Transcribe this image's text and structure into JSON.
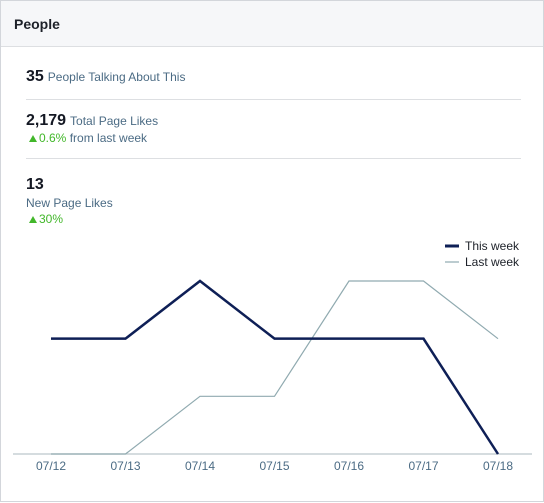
{
  "header": {
    "title": "People"
  },
  "stats": {
    "talking": {
      "value": "35",
      "label": "People Talking About This"
    },
    "total_likes": {
      "value": "2,179",
      "label": "Total Page Likes",
      "delta": "0.6%",
      "delta_suffix": "from last week"
    },
    "new_likes": {
      "value": "13",
      "label": "New Page Likes",
      "delta": "30%"
    }
  },
  "colors": {
    "this_week": "#0e1f56",
    "last_week": "#90aab0",
    "positive": "#42b72a"
  },
  "chart_data": {
    "type": "line",
    "categories": [
      "07/12",
      "07/13",
      "07/14",
      "07/15",
      "07/16",
      "07/17",
      "07/18"
    ],
    "series": [
      {
        "name": "This week",
        "values": [
          2,
          2,
          3,
          2,
          2,
          2,
          0
        ]
      },
      {
        "name": "Last week",
        "values": [
          0,
          0,
          1,
          1,
          3,
          3,
          2
        ]
      }
    ],
    "ylim": [
      0,
      3
    ],
    "legend": "top-right",
    "grid": false
  }
}
